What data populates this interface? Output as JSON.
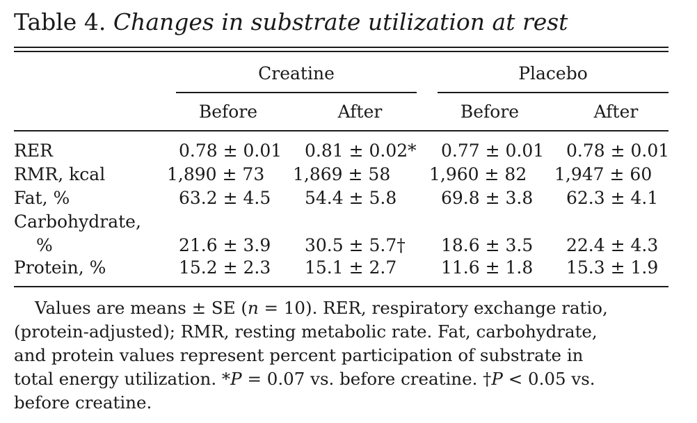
{
  "table": {
    "label": "Table 4.",
    "title": "Changes in substrate utilization at rest",
    "groups": [
      "Creatine",
      "Placebo"
    ],
    "subheaders": [
      "Before",
      "After",
      "Before",
      "After"
    ],
    "rows": [
      {
        "label": "RER",
        "label_cont": "",
        "values": [
          "0.78 ± 0.01",
          "0.81 ± 0.02*",
          "0.77 ± 0.01",
          "0.78 ± 0.01"
        ]
      },
      {
        "label": "RMR, kcal",
        "label_cont": "",
        "values": [
          "1,890 ± 73",
          "1,869 ± 58",
          "1,960 ± 82",
          "1,947 ± 60"
        ]
      },
      {
        "label": "Fat, %",
        "label_cont": "",
        "values": [
          "63.2 ± 4.5",
          "54.4 ± 5.8",
          "69.8 ± 3.8",
          "62.3 ± 4.1"
        ]
      },
      {
        "label": "Carbohydrate,",
        "label_cont": "%",
        "values": [
          "21.6 ± 3.9",
          "30.5 ± 5.7†",
          "18.6 ± 3.5",
          "22.4 ± 4.3"
        ]
      },
      {
        "label": "Protein, %",
        "label_cont": "",
        "values": [
          "15.2 ± 2.3",
          "15.1 ± 2.7",
          "11.6 ± 1.8",
          "15.3 ± 1.9"
        ]
      }
    ],
    "footnote": {
      "l1a": "Values are means ± SE (",
      "l1n": "n",
      "l1b": " = 10). RER, respiratory exchange ratio,",
      "l2": "(protein-adjusted); RMR, resting metabolic rate. Fat, carbohydrate,",
      "l3": "and protein values represent percent participation of substrate in",
      "l4a": "total energy utilization. *",
      "l4p1": "P",
      "l4b": " = 0.07 vs. before creatine. †",
      "l4p2": "P",
      "l4c": " < 0.05 vs.",
      "l5": "before creatine."
    }
  }
}
